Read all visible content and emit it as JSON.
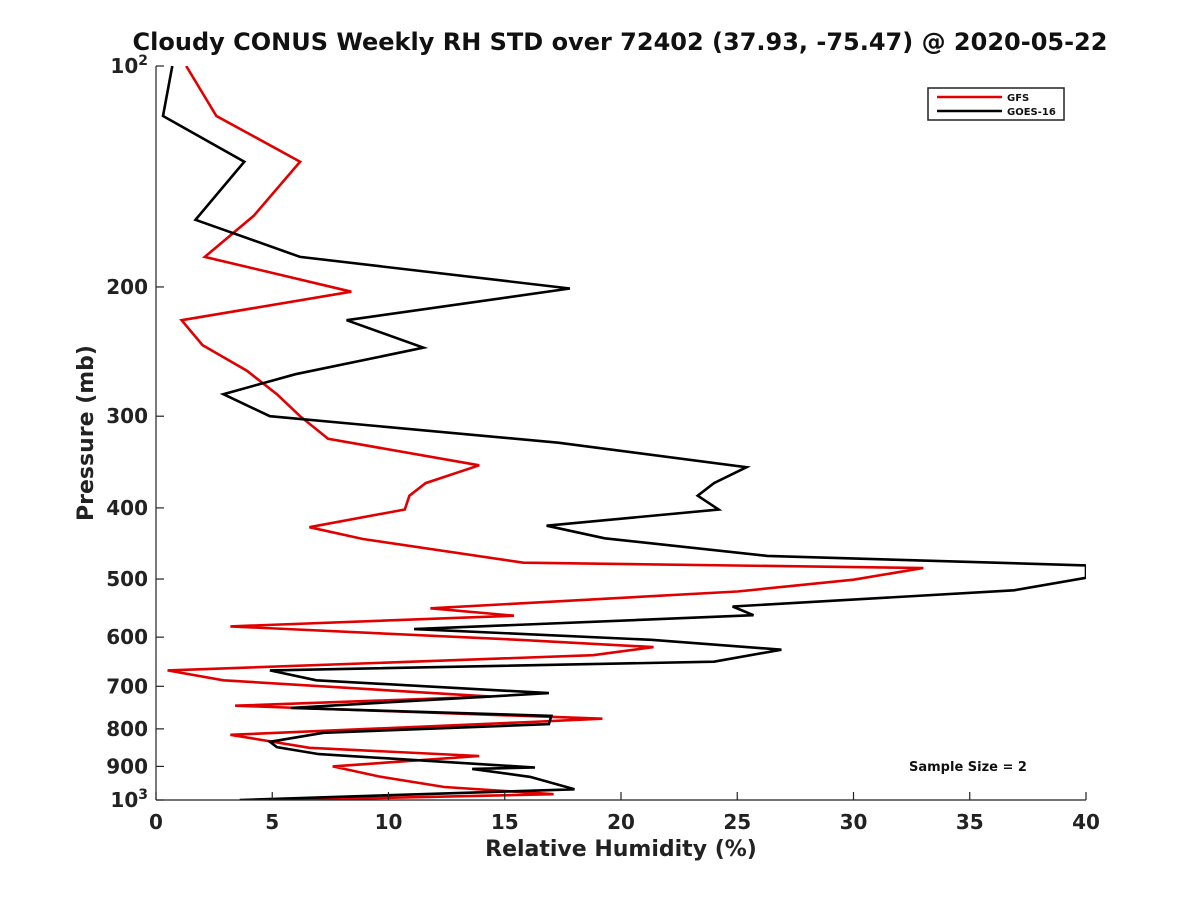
{
  "chart_data": {
    "type": "line",
    "title": "Cloudy CONUS Weekly RH STD over 72402 (37.93, -75.47) @ 2020-05-22",
    "xlabel": "Relative Humidity (%)",
    "ylabel": "Pressure (mb)",
    "xlim": [
      0,
      40
    ],
    "ylim": [
      100,
      1000
    ],
    "yscale": "log",
    "y_reversed": true,
    "grid": false,
    "legend_position": "top-right",
    "annotation": "Sample Size = 2",
    "x_ticks": [
      0,
      5,
      10,
      15,
      20,
      25,
      30,
      35,
      40
    ],
    "x_tick_labels": [
      "0",
      "5",
      "10",
      "15",
      "20",
      "25",
      "30",
      "35",
      "40"
    ],
    "y_ticks": [
      100,
      200,
      300,
      400,
      500,
      600,
      700,
      800,
      900,
      1000
    ],
    "y_tick_labels": [
      "10^2",
      "200",
      "300",
      "400",
      "500",
      "600",
      "700",
      "800",
      "900",
      "10^3"
    ],
    "series": [
      {
        "name": "GFS",
        "color": "#e00000",
        "points": [
          [
            1.3,
            100
          ],
          [
            2.6,
            117
          ],
          [
            6.2,
            135
          ],
          [
            4.2,
            160
          ],
          [
            2.1,
            182
          ],
          [
            8.4,
            203
          ],
          [
            1.1,
            222
          ],
          [
            2.0,
            240
          ],
          [
            3.9,
            260
          ],
          [
            5.2,
            280
          ],
          [
            6.2,
            300
          ],
          [
            7.4,
            322
          ],
          [
            13.9,
            350
          ],
          [
            11.6,
            370
          ],
          [
            10.9,
            385
          ],
          [
            10.7,
            402
          ],
          [
            6.6,
            425
          ],
          [
            8.9,
            441
          ],
          [
            15.8,
            475
          ],
          [
            33.0,
            483
          ],
          [
            30.0,
            501
          ],
          [
            25.0,
            520
          ],
          [
            11.8,
            548
          ],
          [
            15.4,
            561
          ],
          [
            3.2,
            580
          ],
          [
            15.6,
            605
          ],
          [
            21.4,
            619
          ],
          [
            18.8,
            635
          ],
          [
            0.5,
            666
          ],
          [
            2.9,
            687
          ],
          [
            14.4,
            723
          ],
          [
            3.4,
            744
          ],
          [
            19.2,
            775
          ],
          [
            16.1,
            783
          ],
          [
            3.2,
            815
          ],
          [
            6.6,
            849
          ],
          [
            13.9,
            871
          ],
          [
            7.6,
            900
          ],
          [
            9.6,
            929
          ],
          [
            12.4,
            960
          ],
          [
            17.1,
            982
          ],
          [
            5.6,
            1000
          ]
        ]
      },
      {
        "name": "GOES-16",
        "color": "#000000",
        "points": [
          [
            0.7,
            100
          ],
          [
            0.3,
            117
          ],
          [
            3.8,
            135
          ],
          [
            1.7,
            162
          ],
          [
            6.2,
            182
          ],
          [
            17.8,
            201
          ],
          [
            8.2,
            222
          ],
          [
            11.5,
            242
          ],
          [
            6.0,
            263
          ],
          [
            2.9,
            280
          ],
          [
            4.9,
            300
          ],
          [
            17.3,
            326
          ],
          [
            25.4,
            352
          ],
          [
            24.0,
            370
          ],
          [
            23.3,
            385
          ],
          [
            24.2,
            402
          ],
          [
            16.8,
            423
          ],
          [
            19.3,
            440
          ],
          [
            26.3,
            465
          ],
          [
            40.0,
            479
          ],
          [
            40.0,
            498
          ],
          [
            36.9,
            518
          ],
          [
            24.8,
            545
          ],
          [
            25.7,
            560
          ],
          [
            11.1,
            585
          ],
          [
            21.3,
            605
          ],
          [
            26.9,
            624
          ],
          [
            24.0,
            648
          ],
          [
            4.9,
            666
          ],
          [
            6.9,
            687
          ],
          [
            16.9,
            715
          ],
          [
            5.8,
            749
          ],
          [
            17.0,
            768
          ],
          [
            16.9,
            788
          ],
          [
            7.2,
            810
          ],
          [
            4.9,
            833
          ],
          [
            5.2,
            847
          ],
          [
            7.0,
            866
          ],
          [
            16.3,
            903
          ],
          [
            13.6,
            907
          ],
          [
            16.1,
            930
          ],
          [
            18.0,
            967
          ],
          [
            3.6,
            1000
          ]
        ]
      }
    ]
  }
}
